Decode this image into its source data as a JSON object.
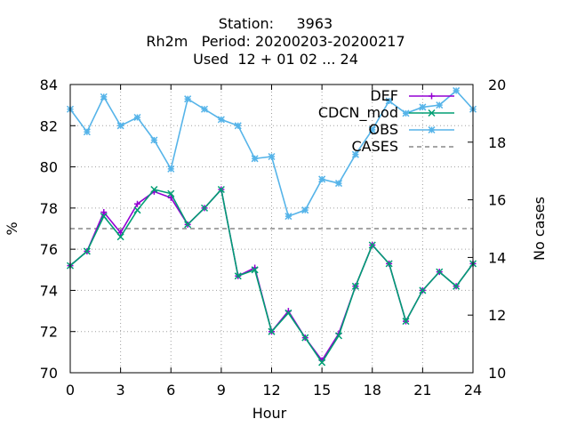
{
  "title": {
    "line1": "Station:     3963",
    "line2": "Rh2m   Period: 20200203-20200217",
    "line3": "Used  12 + 01 02 ... 24"
  },
  "chart_data": {
    "type": "line",
    "xlabel": "Hour",
    "ylabel": "%",
    "y2label": "No cases",
    "xlim": [
      0,
      24
    ],
    "ylim": [
      70,
      84
    ],
    "y2lim": [
      10,
      20
    ],
    "xticks": [
      "0",
      "3",
      "6",
      "9",
      "12",
      "15",
      "18",
      "21",
      "24"
    ],
    "yticks": [
      "70",
      "72",
      "74",
      "76",
      "78",
      "80",
      "82",
      "84"
    ],
    "y2ticks": [
      "10",
      "12",
      "14",
      "16",
      "18",
      "20"
    ],
    "grid": true,
    "legend_position": "top-right",
    "x": [
      0,
      1,
      2,
      3,
      4,
      5,
      6,
      7,
      8,
      9,
      10,
      11,
      12,
      13,
      14,
      15,
      16,
      17,
      18,
      19,
      20,
      21,
      22,
      23,
      24
    ],
    "series": [
      {
        "name": "DEF",
        "color": "#9400d3",
        "marker": "plus",
        "values": [
          75.2,
          75.9,
          77.8,
          76.8,
          78.2,
          78.8,
          78.5,
          77.2,
          78.0,
          78.9,
          74.7,
          75.1,
          72.0,
          73.0,
          71.7,
          70.6,
          71.9,
          74.2,
          76.2,
          75.3,
          72.5,
          74.0,
          74.9,
          74.2,
          75.3
        ]
      },
      {
        "name": "CDCN_mod",
        "color": "#009e73",
        "marker": "x",
        "values": [
          75.2,
          75.9,
          77.6,
          76.6,
          77.9,
          78.9,
          78.7,
          77.2,
          78.0,
          78.9,
          74.7,
          75.0,
          72.0,
          72.9,
          71.7,
          70.5,
          71.8,
          74.2,
          76.2,
          75.3,
          72.5,
          74.0,
          74.9,
          74.2,
          75.3
        ]
      },
      {
        "name": "OBS",
        "color": "#56b4e9",
        "marker": "star",
        "values": [
          82.8,
          81.7,
          83.4,
          82.0,
          82.4,
          81.3,
          79.9,
          83.3,
          82.8,
          82.3,
          82.0,
          80.4,
          80.5,
          77.6,
          77.9,
          79.4,
          79.2,
          80.6,
          81.8,
          83.2,
          82.6,
          82.9,
          83.0,
          83.7,
          82.8
        ]
      }
    ],
    "cases": {
      "name": "CASES",
      "color": "#888888",
      "value": 15,
      "axis": "y2",
      "style": "dashed"
    }
  }
}
